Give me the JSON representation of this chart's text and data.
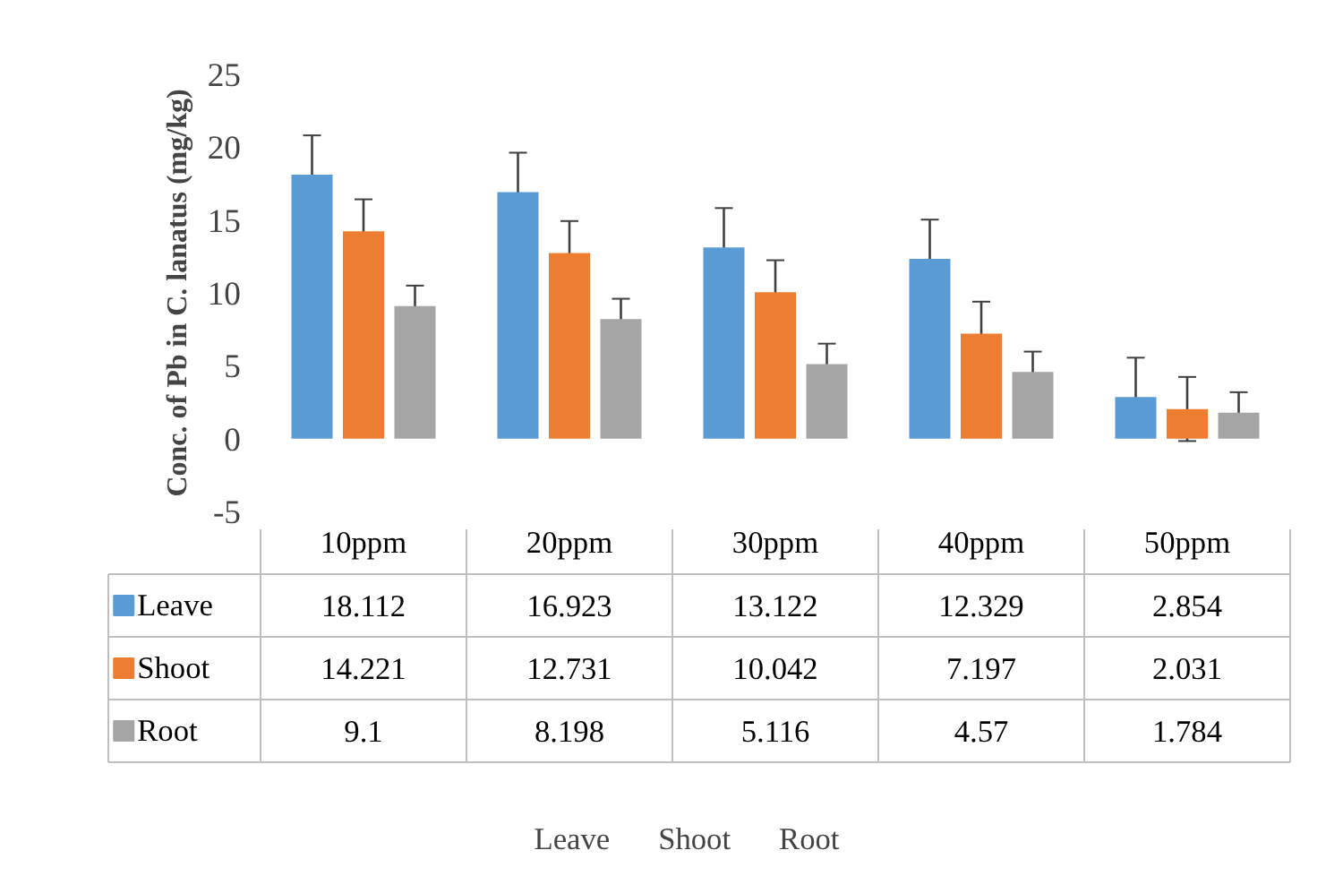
{
  "chart_data": {
    "type": "bar",
    "ylabel": "Conc. of Pb in C. lanatus (mg/kg)",
    "categories": [
      "10ppm",
      "20ppm",
      "30ppm",
      "40ppm",
      "50ppm"
    ],
    "series": [
      {
        "name": "Leave",
        "color": "#5b9bd5",
        "values": [
          18.112,
          16.923,
          13.122,
          12.329,
          2.854
        ],
        "errors": [
          2.7,
          2.7,
          2.7,
          2.7,
          2.7
        ]
      },
      {
        "name": "Shoot",
        "color": "#ed7d31",
        "values": [
          14.221,
          12.731,
          10.042,
          7.197,
          2.031
        ],
        "errors": [
          2.2,
          2.2,
          2.2,
          2.2,
          2.2
        ]
      },
      {
        "name": "Root",
        "color": "#a5a5a5",
        "values": [
          9.1,
          8.198,
          5.116,
          4.57,
          1.784
        ],
        "errors": [
          1.4,
          1.4,
          1.4,
          1.4,
          1.4
        ]
      }
    ],
    "ylim": [
      -5,
      25
    ],
    "yticks": [
      -5,
      0,
      5,
      10,
      15,
      20,
      25
    ],
    "grid": false,
    "data_labels": true,
    "legend": "bottom"
  }
}
